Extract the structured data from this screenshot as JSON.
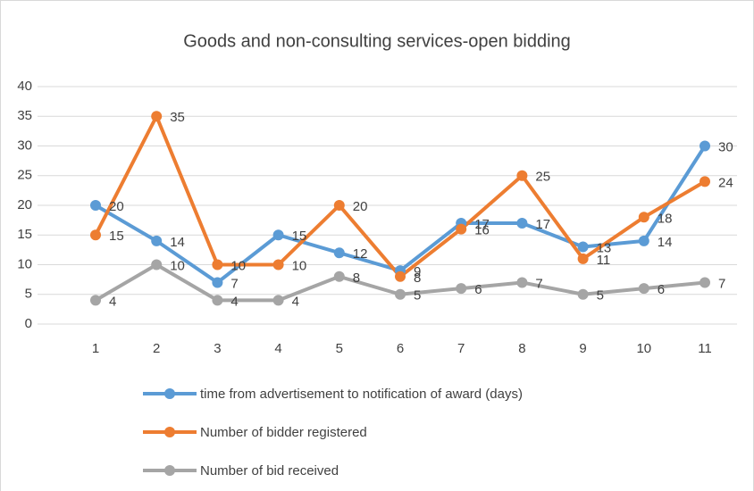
{
  "chart_data": {
    "type": "line",
    "title": "Goods and non-consulting services-open bidding",
    "categories": [
      1,
      2,
      3,
      4,
      5,
      6,
      7,
      8,
      9,
      10,
      11
    ],
    "series": [
      {
        "name": "time from advertisement to notification of award (days)",
        "color": "#5b9bd5",
        "values": [
          20,
          14,
          7,
          15,
          12,
          9,
          17,
          17,
          13,
          14,
          30
        ]
      },
      {
        "name": "Number of bidder registered",
        "color": "#ed7d31",
        "values": [
          15,
          35,
          10,
          10,
          20,
          8,
          16,
          25,
          11,
          18,
          24
        ]
      },
      {
        "name": "Number of bid received",
        "color": "#a5a5a5",
        "values": [
          4,
          10,
          4,
          4,
          8,
          5,
          6,
          7,
          5,
          6,
          7
        ]
      }
    ],
    "ylim": [
      0,
      40
    ],
    "yticks": [
      0,
      5,
      10,
      15,
      20,
      25,
      30,
      35,
      40
    ],
    "grid": true,
    "legend": "bottom"
  }
}
